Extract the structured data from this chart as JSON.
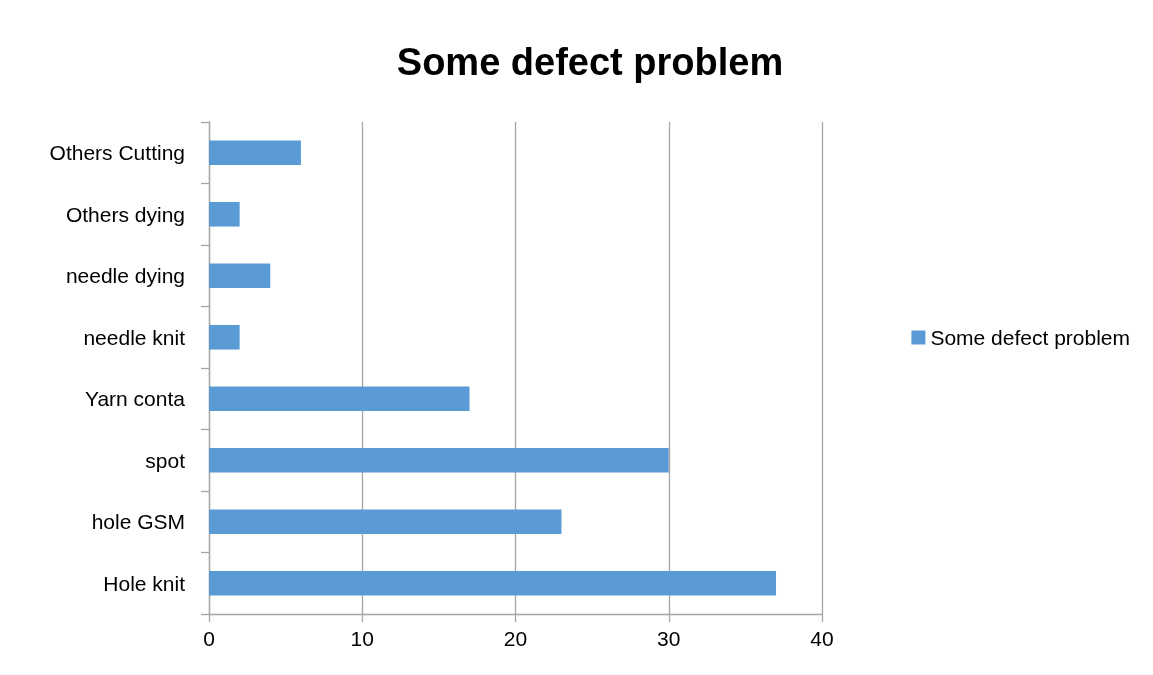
{
  "chart_data": {
    "type": "bar",
    "orientation": "horizontal",
    "title": "Some defect problem",
    "categories": [
      "Others Cutting",
      "Others dying",
      "needle dying",
      "needle knit",
      "Yarn conta",
      "spot",
      "hole GSM",
      "Hole knit"
    ],
    "series": [
      {
        "name": "Some defect problem",
        "color": "#5b9bd5",
        "values": [
          6,
          2,
          4,
          2,
          17,
          30,
          23,
          37
        ]
      }
    ],
    "xlim": [
      0,
      40
    ],
    "xticks": [
      0,
      10,
      20,
      30,
      40
    ],
    "grid": "x",
    "legend": "right"
  }
}
